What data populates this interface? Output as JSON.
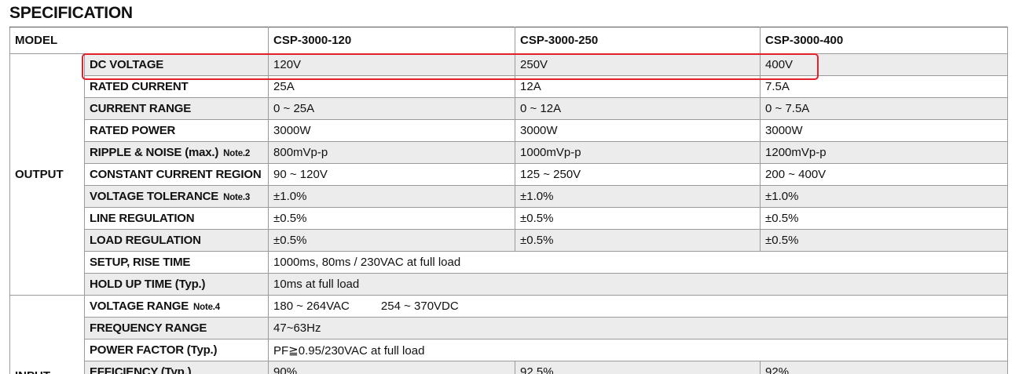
{
  "title": "SPECIFICATION",
  "header": {
    "label": "MODEL",
    "models": [
      "CSP-3000-120",
      "CSP-3000-250",
      "CSP-3000-400"
    ]
  },
  "groups": [
    {
      "name": "OUTPUT",
      "rows": [
        {
          "label": "DC VOLTAGE",
          "values": [
            "120V",
            "250V",
            "400V"
          ]
        },
        {
          "label": "RATED CURRENT",
          "values": [
            "25A",
            "12A",
            "7.5A"
          ]
        },
        {
          "label": "CURRENT RANGE",
          "values": [
            "0 ~ 25A",
            "0 ~ 12A",
            "0 ~ 7.5A"
          ]
        },
        {
          "label": "RATED POWER",
          "values": [
            "3000W",
            "3000W",
            "3000W"
          ]
        },
        {
          "label": "RIPPLE & NOISE (max.)",
          "note": "Note.2",
          "values": [
            "800mVp-p",
            "1000mVp-p",
            "1200mVp-p"
          ]
        },
        {
          "label": "CONSTANT CURRENT REGION",
          "values": [
            "90 ~ 120V",
            "125 ~ 250V",
            "200 ~ 400V"
          ]
        },
        {
          "label": "VOLTAGE TOLERANCE",
          "note": "Note.3",
          "values": [
            "±1.0%",
            "±1.0%",
            "±1.0%"
          ]
        },
        {
          "label": "LINE REGULATION",
          "values": [
            "±0.5%",
            "±0.5%",
            "±0.5%"
          ]
        },
        {
          "label": "LOAD REGULATION",
          "values": [
            "±0.5%",
            "±0.5%",
            "±0.5%"
          ]
        },
        {
          "label": "SETUP, RISE TIME",
          "values": [
            "1000ms, 80ms / 230VAC at full load"
          ]
        },
        {
          "label": "HOLD UP TIME (Typ.)",
          "values": [
            "10ms at full load"
          ]
        }
      ]
    },
    {
      "name": "INPUT",
      "rows": [
        {
          "label": "VOLTAGE RANGE",
          "note": "Note.4",
          "values": [
            "180 ~ 264VAC",
            "254 ~ 370VDC"
          ]
        },
        {
          "label": "FREQUENCY RANGE",
          "values": [
            "47~63Hz"
          ]
        },
        {
          "label": "POWER FACTOR (Typ.)",
          "values": [
            "PF≧0.95/230VAC at full load"
          ]
        },
        {
          "label": "EFFICIENCY (Typ.)",
          "values": [
            "90%",
            "92.5%",
            "92%"
          ]
        }
      ]
    }
  ]
}
